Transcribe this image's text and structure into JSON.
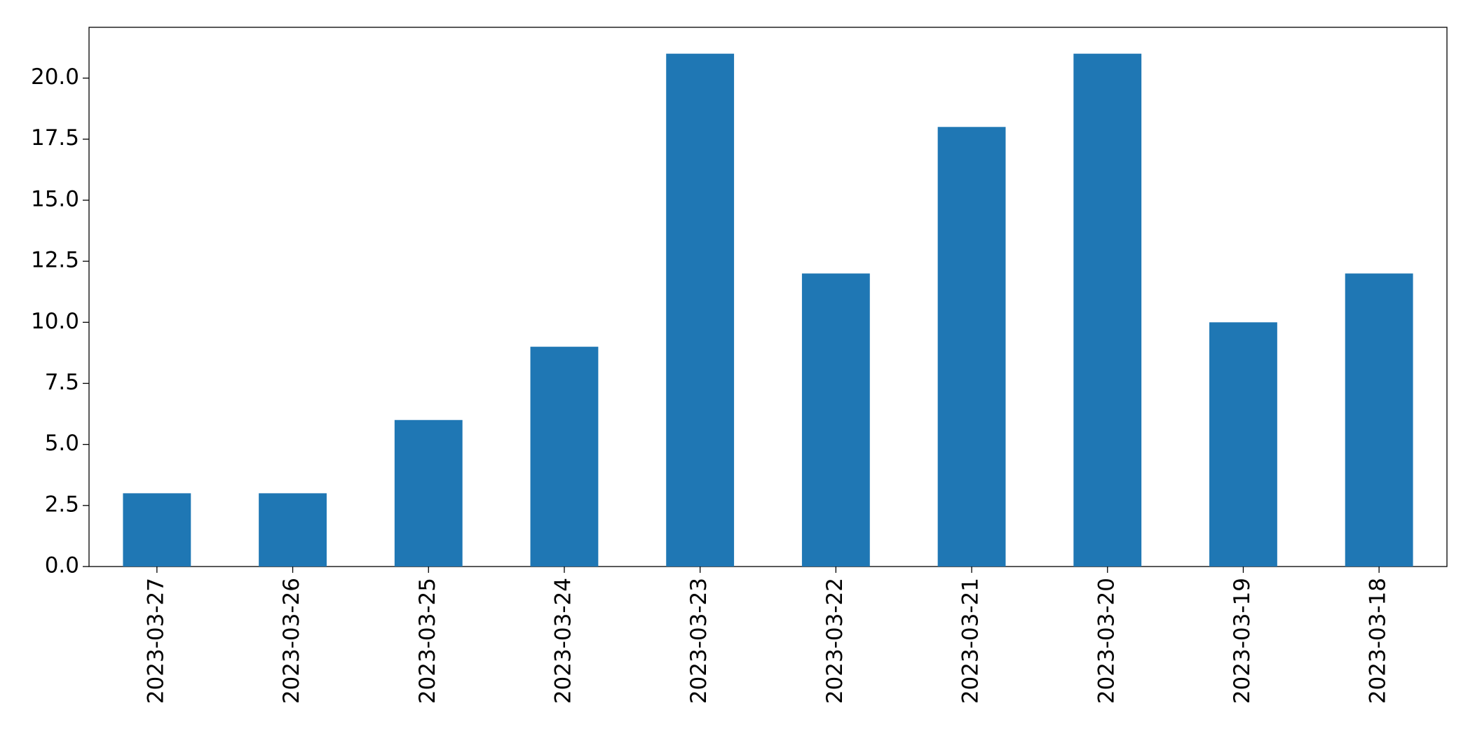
{
  "chart_data": {
    "type": "bar",
    "categories": [
      "2023-03-27",
      "2023-03-26",
      "2023-03-25",
      "2023-03-24",
      "2023-03-23",
      "2023-03-22",
      "2023-03-21",
      "2023-03-20",
      "2023-03-19",
      "2023-03-18"
    ],
    "values": [
      3,
      3,
      6,
      9,
      21,
      12,
      18,
      21,
      10,
      12
    ],
    "color": "#1f77b4",
    "ylim": [
      0,
      22.08
    ],
    "yticks": [
      {
        "value": 0,
        "label": "0.0"
      },
      {
        "value": 2.5,
        "label": "2.5"
      },
      {
        "value": 5,
        "label": "5.0"
      },
      {
        "value": 7.5,
        "label": "7.5"
      },
      {
        "value": 10,
        "label": "10.0"
      },
      {
        "value": 12.5,
        "label": "12.5"
      },
      {
        "value": 15,
        "label": "15.0"
      },
      {
        "value": 17.5,
        "label": "17.5"
      },
      {
        "value": 20,
        "label": "20.0"
      }
    ],
    "grid": false
  }
}
